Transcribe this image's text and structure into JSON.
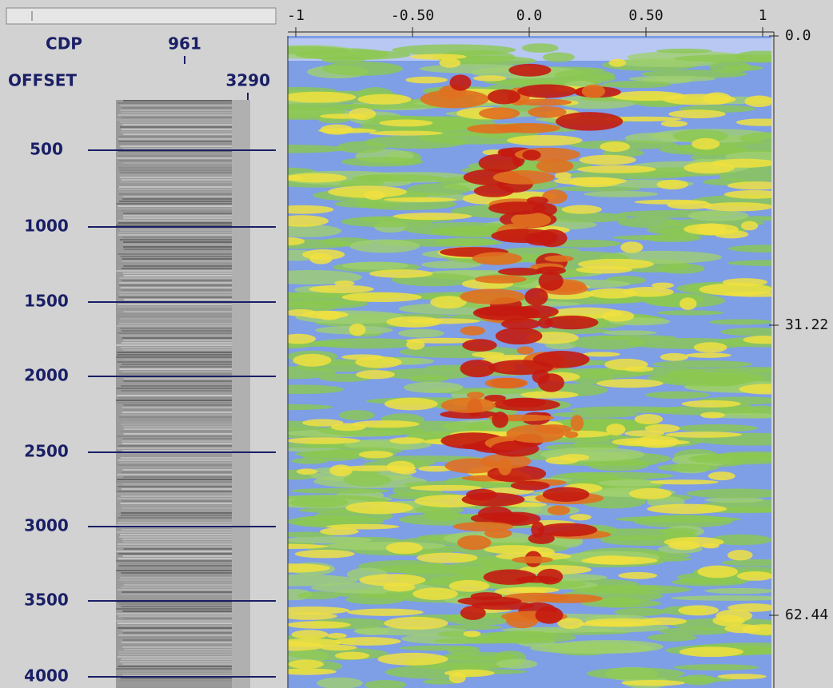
{
  "header": {
    "cdp_label": "CDP",
    "cdp_value": "961",
    "offset_label": "OFFSET",
    "offset_value": "3290"
  },
  "left_axis": {
    "labels": [
      "500",
      "1000",
      "1500",
      "2000",
      "2500",
      "3000",
      "3500",
      "4000"
    ]
  },
  "top_axis": {
    "labels": [
      "-1",
      "-0.50",
      "0.0",
      "0.50",
      "1"
    ]
  },
  "right_axis": {
    "labels": [
      "0.0",
      "31.22",
      "62.44"
    ]
  }
}
